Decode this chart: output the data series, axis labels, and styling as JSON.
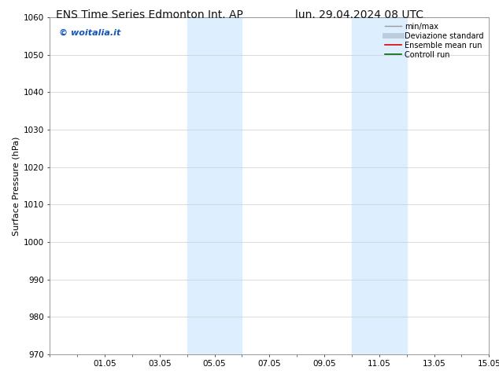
{
  "title_left": "ENS Time Series Edmonton Int. AP",
  "title_right": "lun. 29.04.2024 08 UTC",
  "ylabel": "Surface Pressure (hPa)",
  "ylim": [
    970,
    1060
  ],
  "yticks": [
    970,
    980,
    990,
    1000,
    1010,
    1020,
    1030,
    1040,
    1050,
    1060
  ],
  "xlim": [
    0,
    16
  ],
  "xtick_labels": [
    "01.05",
    "03.05",
    "05.05",
    "07.05",
    "09.05",
    "11.05",
    "13.05",
    "15.05"
  ],
  "xtick_positions": [
    2,
    4,
    6,
    8,
    10,
    12,
    14,
    16
  ],
  "shaded_bands": [
    {
      "x_start": 5,
      "x_end": 7
    },
    {
      "x_start": 11,
      "x_end": 13
    }
  ],
  "shaded_color": "#ddeeff",
  "watermark_text": "© woitalia.it",
  "watermark_color": "#1155bb",
  "legend_items": [
    {
      "label": "min/max",
      "color": "#999999",
      "lw": 1.0
    },
    {
      "label": "Deviazione standard",
      "color": "#bbccdd",
      "lw": 5
    },
    {
      "label": "Ensemble mean run",
      "color": "#dd0000",
      "lw": 1.2
    },
    {
      "label": "Controll run",
      "color": "#006600",
      "lw": 1.2
    }
  ],
  "bg_color": "#ffffff",
  "grid_color": "#cccccc",
  "spine_color": "#888888",
  "title_fontsize": 10,
  "ylabel_fontsize": 8,
  "tick_fontsize": 7.5,
  "watermark_fontsize": 8,
  "legend_fontsize": 7
}
